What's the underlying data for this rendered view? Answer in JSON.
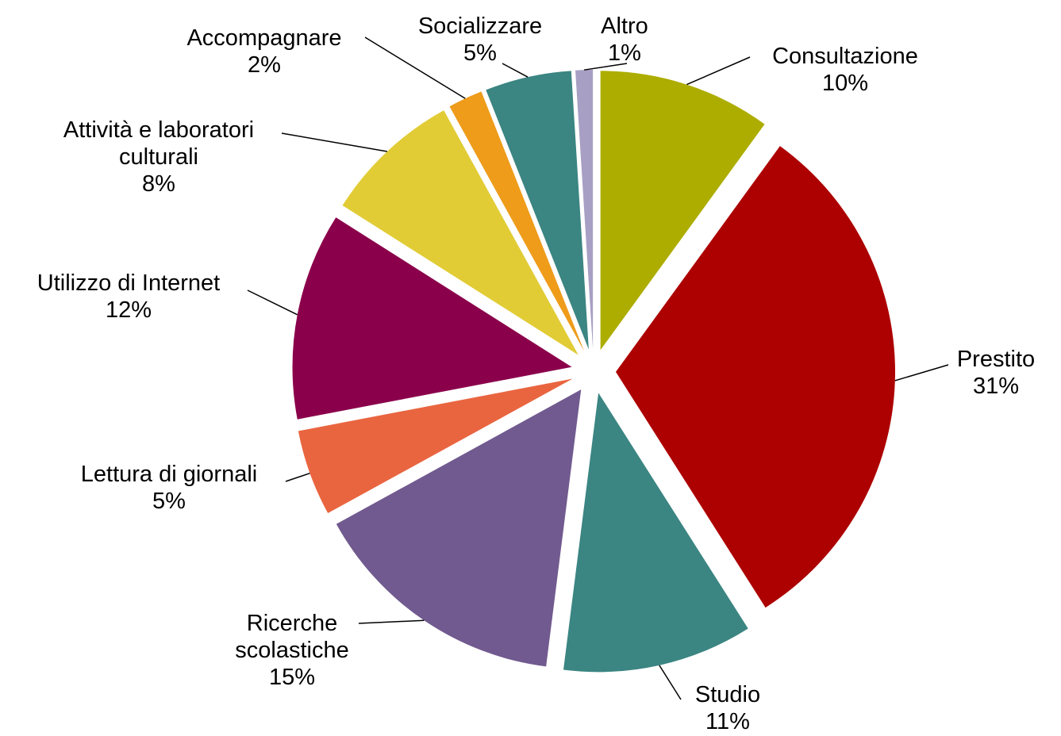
{
  "chart_data": {
    "type": "pie",
    "categories": [
      "Consultazione",
      "Prestito",
      "Studio",
      "Ricerche scolastiche",
      "Lettura di giornali",
      "Utilizzo di Internet",
      "Attività e laboratori culturali",
      "Accompagnare",
      "Socializzare",
      "Altro"
    ],
    "values": [
      10,
      31,
      11,
      15,
      5,
      12,
      8,
      2,
      5,
      1
    ],
    "value_labels": [
      "10%",
      "31%",
      "11%",
      "15%",
      "5%",
      "12%",
      "8%",
      "2%",
      "5%",
      "1%"
    ],
    "colors": [
      "#adad00",
      "#ad0000",
      "#3b8582",
      "#715a8f",
      "#e96540",
      "#8b004b",
      "#e1cc36",
      "#ee9c1a",
      "#3b8582",
      "#a89fc4"
    ]
  }
}
